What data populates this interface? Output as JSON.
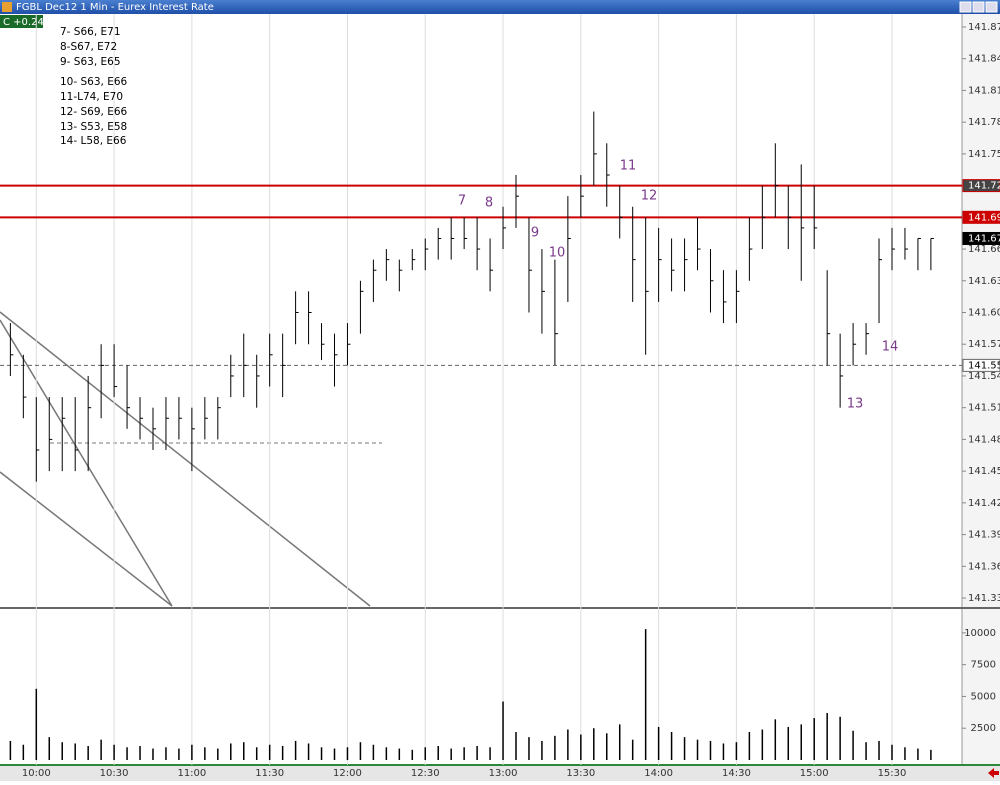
{
  "chart_data": {
    "type": "ohlc",
    "title": "FGBL Dec12 1 Min - Eurex Interest Rate",
    "change": "C +0.24",
    "notes": [
      "7- S66, E71",
      "8-S67, E72",
      "9- S63, E65",
      "10- S63, E66",
      "11-L74, E70",
      "12- S69, E66",
      "13- S53, E58",
      "14- L58, E66"
    ],
    "markers": [
      "7",
      "8",
      "9",
      "10",
      "11",
      "12",
      "13",
      "14"
    ],
    "x": [
      "09:50",
      "09:55",
      "10:00",
      "10:05",
      "10:10",
      "10:15",
      "10:20",
      "10:25",
      "10:30",
      "10:35",
      "10:40",
      "10:45",
      "10:50",
      "10:55",
      "11:00",
      "11:05",
      "11:10",
      "11:15",
      "11:20",
      "11:25",
      "11:30",
      "11:35",
      "11:40",
      "11:45",
      "11:50",
      "11:55",
      "12:00",
      "12:05",
      "12:10",
      "12:15",
      "12:20",
      "12:25",
      "12:30",
      "12:35",
      "12:40",
      "12:45",
      "12:50",
      "12:55",
      "13:00",
      "13:05",
      "13:10",
      "13:15",
      "13:20",
      "13:25",
      "13:30",
      "13:35",
      "13:40",
      "13:45",
      "13:50",
      "13:55",
      "14:00",
      "14:05",
      "14:10",
      "14:15",
      "14:20",
      "14:25",
      "14:30",
      "14:35",
      "14:40",
      "14:45",
      "14:50",
      "14:55",
      "15:00",
      "15:05",
      "15:10",
      "15:15",
      "15:20",
      "15:25",
      "15:30",
      "15:35",
      "15:40",
      "15:45"
    ],
    "high": [
      141.59,
      141.56,
      141.52,
      141.52,
      141.52,
      141.52,
      141.54,
      141.57,
      141.57,
      141.55,
      141.52,
      141.51,
      141.52,
      141.52,
      141.51,
      141.52,
      141.52,
      141.56,
      141.58,
      141.56,
      141.58,
      141.58,
      141.62,
      141.62,
      141.59,
      141.58,
      141.59,
      141.63,
      141.65,
      141.66,
      141.65,
      141.66,
      141.67,
      141.68,
      141.69,
      141.69,
      141.69,
      141.67,
      141.7,
      141.73,
      141.69,
      141.66,
      141.65,
      141.71,
      141.73,
      141.79,
      141.76,
      141.72,
      141.7,
      141.69,
      141.68,
      141.67,
      141.67,
      141.69,
      141.66,
      141.64,
      141.64,
      141.69,
      141.72,
      141.76,
      141.72,
      141.74,
      141.72,
      141.64,
      141.58,
      141.59,
      141.59,
      141.67,
      141.68,
      141.68,
      141.67,
      141.67
    ],
    "low": [
      141.54,
      141.5,
      141.44,
      141.45,
      141.45,
      141.45,
      141.45,
      141.5,
      141.52,
      141.49,
      141.48,
      141.47,
      141.47,
      141.48,
      141.45,
      141.48,
      141.48,
      141.52,
      141.52,
      141.51,
      141.53,
      141.52,
      141.57,
      141.57,
      141.555,
      141.53,
      141.55,
      141.58,
      141.61,
      141.63,
      141.62,
      141.64,
      141.64,
      141.65,
      141.65,
      141.66,
      141.64,
      141.62,
      141.66,
      141.68,
      141.6,
      141.58,
      141.55,
      141.61,
      141.69,
      141.72,
      141.7,
      141.67,
      141.61,
      141.56,
      141.61,
      141.62,
      141.62,
      141.64,
      141.6,
      141.59,
      141.59,
      141.63,
      141.66,
      141.69,
      141.66,
      141.63,
      141.66,
      141.55,
      141.51,
      141.55,
      141.56,
      141.59,
      141.64,
      141.65,
      141.64,
      141.64
    ],
    "close": [
      141.56,
      141.52,
      141.47,
      141.48,
      141.5,
      141.47,
      141.51,
      141.55,
      141.53,
      141.51,
      141.5,
      141.49,
      141.5,
      141.5,
      141.49,
      141.5,
      141.51,
      141.54,
      141.55,
      141.54,
      141.56,
      141.55,
      141.6,
      141.6,
      141.57,
      141.56,
      141.57,
      141.62,
      141.64,
      141.65,
      141.64,
      141.65,
      141.66,
      141.67,
      141.67,
      141.67,
      141.66,
      141.64,
      141.68,
      141.71,
      141.64,
      141.62,
      141.58,
      141.67,
      141.71,
      141.75,
      141.73,
      141.69,
      141.65,
      141.62,
      141.65,
      141.64,
      141.65,
      141.66,
      141.63,
      141.61,
      141.62,
      141.66,
      141.69,
      141.72,
      141.69,
      141.68,
      141.68,
      141.58,
      141.54,
      141.57,
      141.58,
      141.65,
      141.66,
      141.66,
      141.67,
      141.67
    ],
    "volume": [
      1500,
      1200,
      5600,
      1800,
      1400,
      1300,
      1100,
      1600,
      1200,
      1000,
      1100,
      900,
      1000,
      900,
      1200,
      1000,
      900,
      1300,
      1400,
      1000,
      1200,
      1100,
      1500,
      1300,
      1000,
      900,
      1000,
      1400,
      1200,
      1000,
      900,
      800,
      1000,
      1100,
      900,
      1000,
      1100,
      1000,
      4600,
      2200,
      1800,
      1500,
      1900,
      2400,
      2000,
      2500,
      2100,
      2800,
      1600,
      10300,
      2600,
      2200,
      1800,
      1600,
      1500,
      1300,
      1400,
      2200,
      2400,
      3200,
      2600,
      2800,
      3300,
      3700,
      3400,
      2300,
      1400,
      1500,
      1200,
      1000,
      900,
      800
    ],
    "color": "#000000",
    "xlim": [
      "09:46",
      "15:57"
    ],
    "xticks": [
      "10:00",
      "10:30",
      "11:00",
      "11:30",
      "12:00",
      "12:30",
      "13:00",
      "13:30",
      "14:00",
      "14:30",
      "15:00",
      "15:30"
    ],
    "ylim": [
      141.32,
      141.88
    ],
    "yticks": [
      141.33,
      141.36,
      141.39,
      141.42,
      141.45,
      141.48,
      141.51,
      141.54,
      141.57,
      {
        "value": 141.6,
        "label": "141.60"
      },
      141.63,
      141.66,
      141.69,
      141.72,
      141.75,
      141.78,
      141.81,
      141.84,
      141.87
    ],
    "price_levels": [
      {
        "value": 141.72,
        "style": "solid",
        "color": "#cc0000",
        "box": "#444444"
      },
      {
        "value": 141.69,
        "style": "solid",
        "color": "#cc0000",
        "box": "#cc0000"
      },
      {
        "value": 141.67,
        "style": "none",
        "color": "#000000",
        "box": "#000000"
      },
      {
        "value": 141.55,
        "style": "dashed",
        "color": "#666666",
        "box": "#ffffff"
      }
    ],
    "volume_ylim": [
      0,
      11800
    ],
    "volume_yticks": [
      2500,
      5000,
      7500,
      10000
    ],
    "grid": "x"
  }
}
